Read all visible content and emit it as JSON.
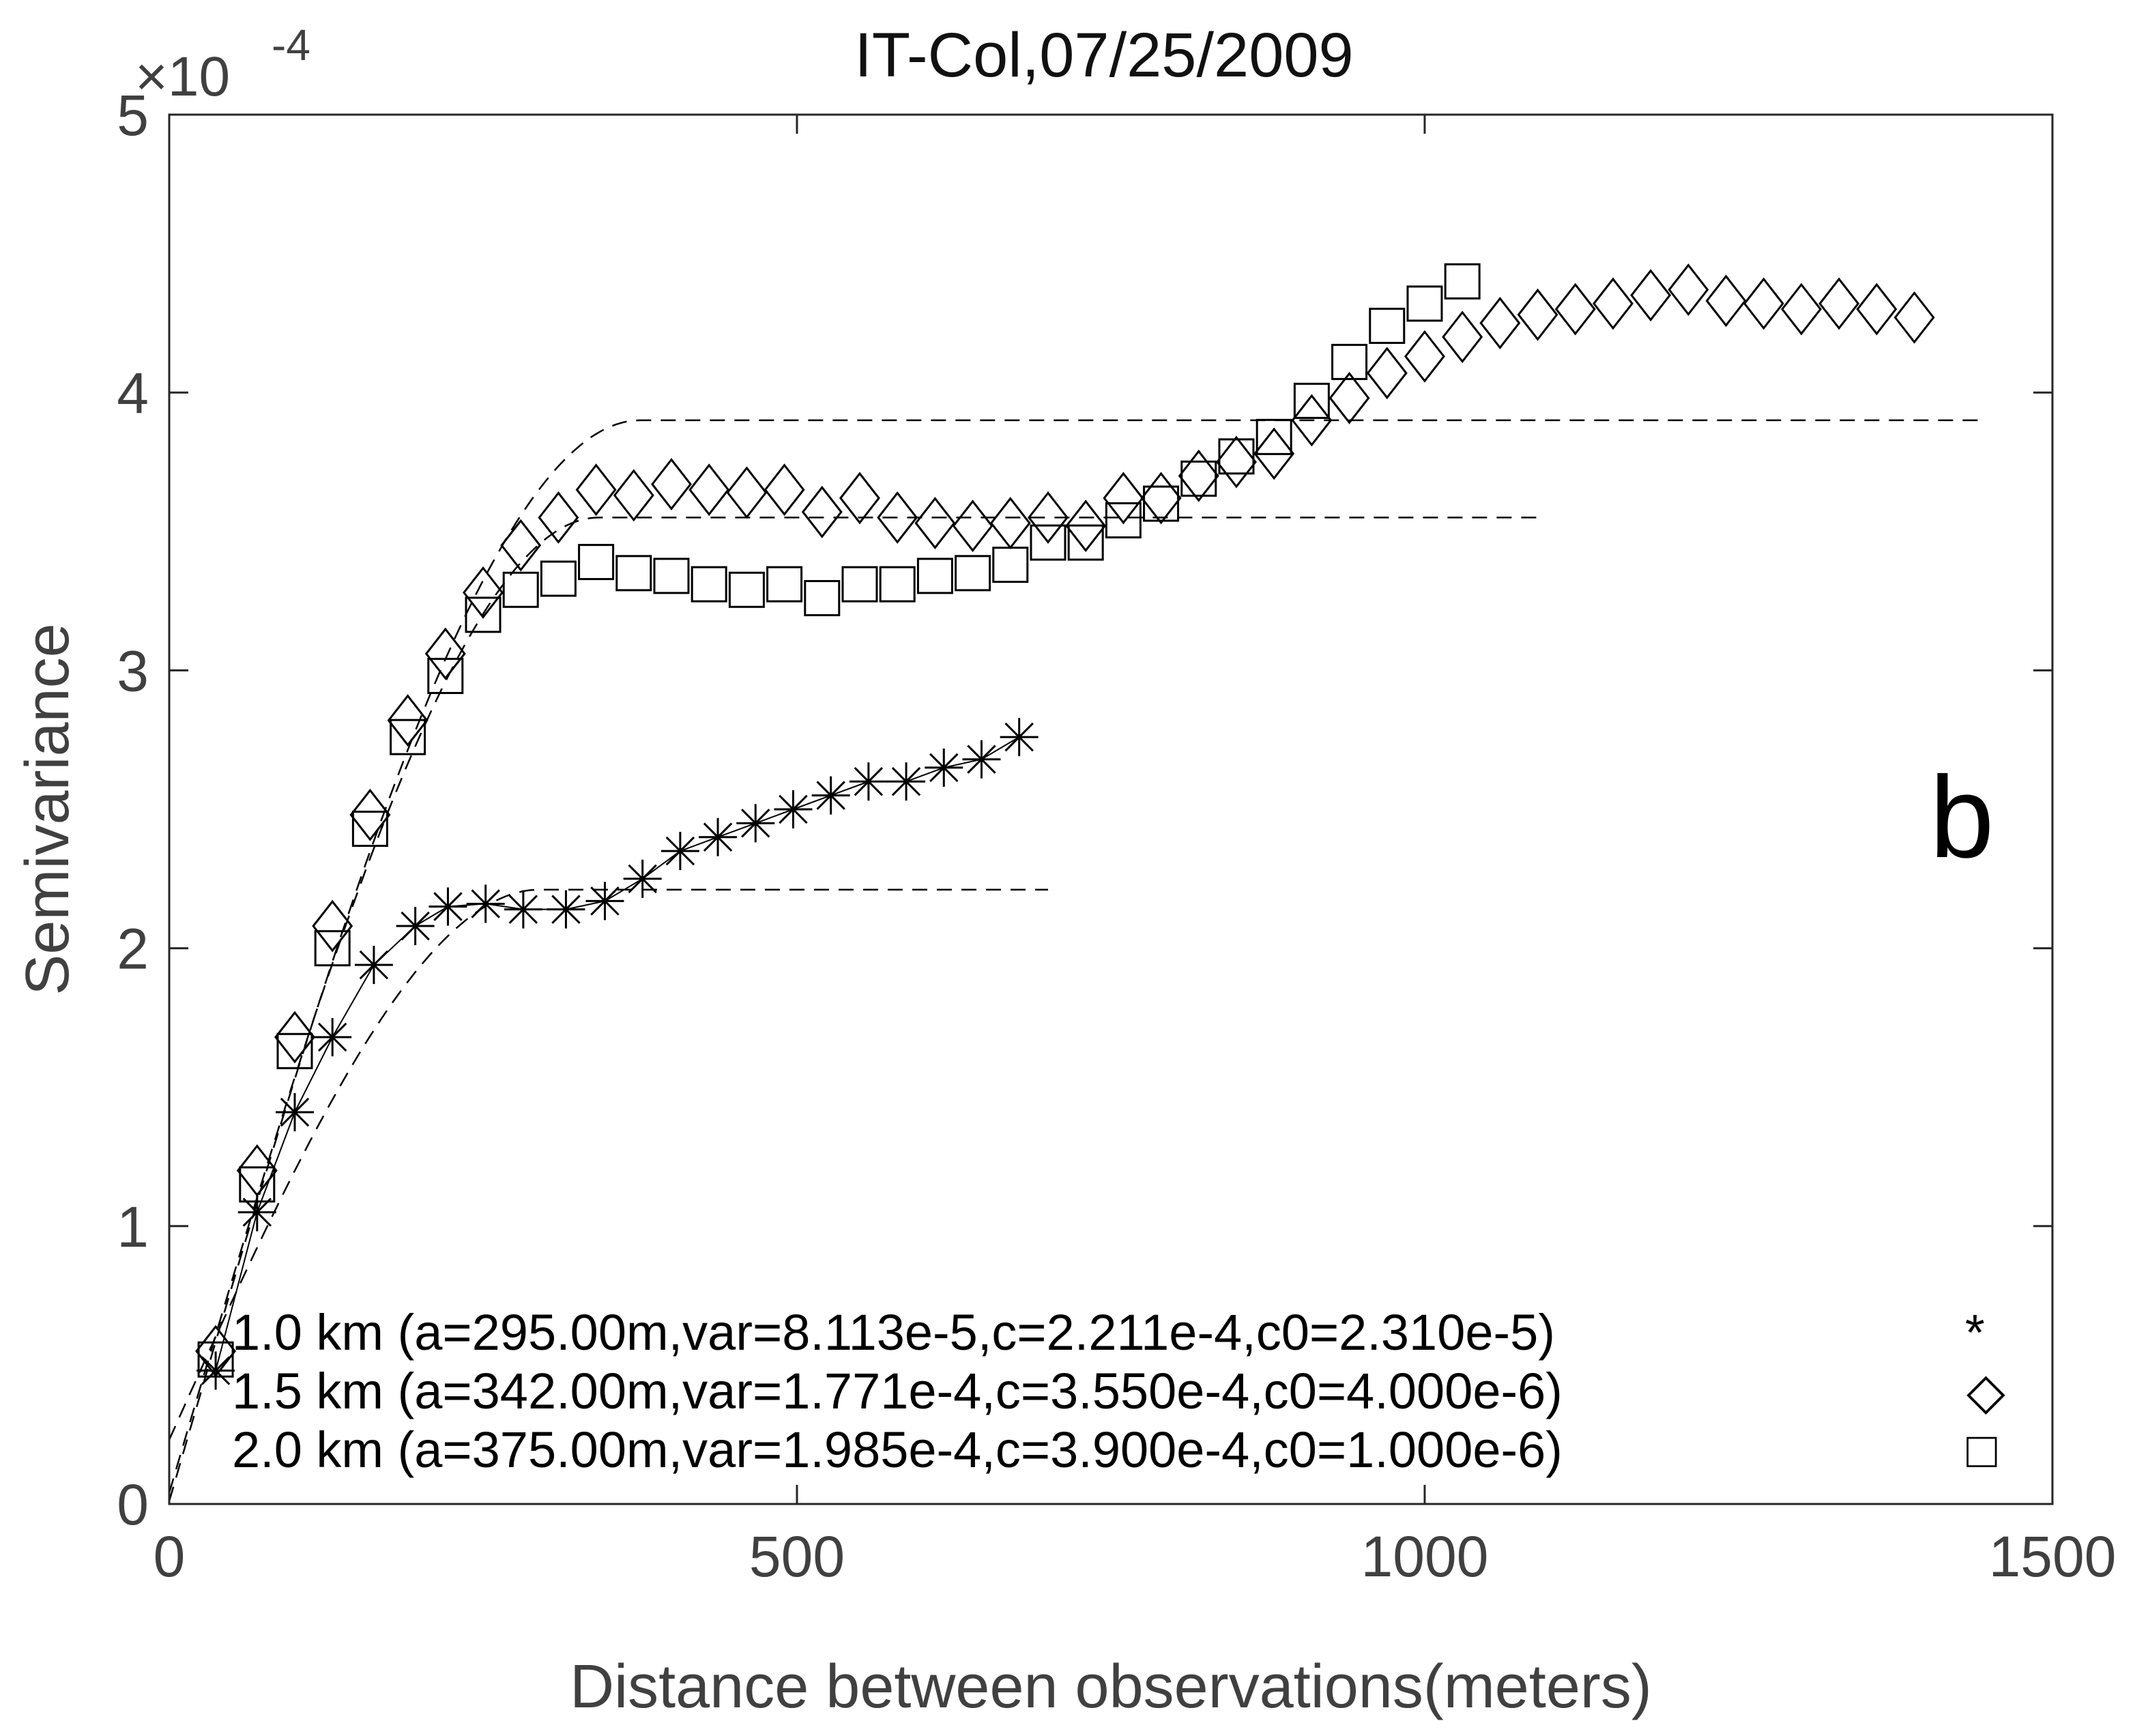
{
  "chart_data": {
    "type": "scatter",
    "title": "IT-Col,07/25/2009",
    "xlabel": "Distance between observations(meters)",
    "ylabel": "Semivariance",
    "xlim": [
      0,
      1500
    ],
    "ylim": [
      0,
      5
    ],
    "y_scale_prefix": "×10",
    "y_scale_exponent": "-4",
    "x_ticks": [
      0,
      500,
      1000,
      1500
    ],
    "y_ticks": [
      0,
      1,
      2,
      3,
      4,
      5
    ],
    "x_tick_labels": [
      "0",
      "500",
      "1000",
      "1500"
    ],
    "y_tick_labels": [
      "0",
      "1",
      "2",
      "3",
      "4",
      "5"
    ],
    "panel_label": "b",
    "legend_position": "bottom-left",
    "series": [
      {
        "name": "1.0 km",
        "legend_text": "1.0 km (a=295.00m,var=8.113e-5,c=2.211e-4,c0=2.310e-5)",
        "legend_symbol": "*",
        "marker": "asterisk",
        "x": [
          37,
          70,
          100,
          130,
          163,
          196,
          222,
          252,
          282,
          316,
          347,
          377,
          407,
          437,
          467,
          497,
          527,
          557,
          587,
          617,
          647,
          677
        ],
        "y": [
          0.48,
          1.05,
          1.41,
          1.68,
          1.94,
          2.08,
          2.15,
          2.16,
          2.14,
          2.14,
          2.17,
          2.25,
          2.35,
          2.4,
          2.45,
          2.5,
          2.55,
          2.6,
          2.6,
          2.65,
          2.68,
          2.76
        ],
        "model": {
          "range": 295,
          "c": 2.211,
          "c0": 0.231,
          "x_max": 700
        }
      },
      {
        "name": "1.5 km",
        "legend_text": "1.5 km (a=342.00m,var=1.771e-4,c=3.550e-4,c0=4.000e-6)",
        "legend_symbol": "◇",
        "marker": "diamond",
        "x": [
          37,
          70,
          100,
          130,
          160,
          190,
          220,
          250,
          280,
          310,
          340,
          370,
          400,
          430,
          460,
          490,
          520,
          550,
          580,
          610,
          640,
          670,
          700,
          730,
          760,
          790,
          820,
          850,
          880,
          910,
          940,
          970,
          1000,
          1030,
          1060,
          1090,
          1120,
          1150,
          1180,
          1210,
          1240,
          1270,
          1300,
          1330,
          1360,
          1390
        ],
        "y": [
          0.55,
          1.2,
          1.68,
          2.08,
          2.48,
          2.82,
          3.06,
          3.28,
          3.45,
          3.55,
          3.65,
          3.63,
          3.67,
          3.65,
          3.64,
          3.65,
          3.57,
          3.62,
          3.55,
          3.53,
          3.52,
          3.53,
          3.55,
          3.52,
          3.62,
          3.62,
          3.7,
          3.75,
          3.78,
          3.9,
          3.98,
          4.07,
          4.13,
          4.2,
          4.25,
          4.28,
          4.3,
          4.32,
          4.35,
          4.37,
          4.33,
          4.32,
          4.3,
          4.32,
          4.3,
          4.27
        ],
        "model": {
          "range": 342,
          "c": 3.55,
          "c0": 0.04,
          "x_max": 1095
        }
      },
      {
        "name": "2.0 km",
        "legend_text": "2.0 km (a=375.00m,var=1.985e-4,c=3.900e-4,c0=1.000e-6)",
        "legend_symbol": "□",
        "marker": "square",
        "x": [
          37,
          70,
          100,
          130,
          160,
          190,
          220,
          250,
          280,
          310,
          340,
          370,
          400,
          430,
          460,
          490,
          520,
          550,
          580,
          610,
          640,
          670,
          700,
          730,
          760,
          790,
          820,
          850,
          880,
          910,
          940,
          970,
          1000,
          1030
        ],
        "y": [
          0.52,
          1.15,
          1.63,
          2.0,
          2.43,
          2.76,
          2.98,
          3.2,
          3.29,
          3.33,
          3.39,
          3.35,
          3.34,
          3.31,
          3.29,
          3.31,
          3.26,
          3.31,
          3.31,
          3.34,
          3.35,
          3.38,
          3.46,
          3.46,
          3.54,
          3.6,
          3.69,
          3.77,
          3.84,
          3.97,
          4.11,
          4.24,
          4.32,
          4.4
        ],
        "model": {
          "range": 375,
          "c": 3.9,
          "c0": 0.01,
          "x_max": 1450
        }
      }
    ]
  }
}
